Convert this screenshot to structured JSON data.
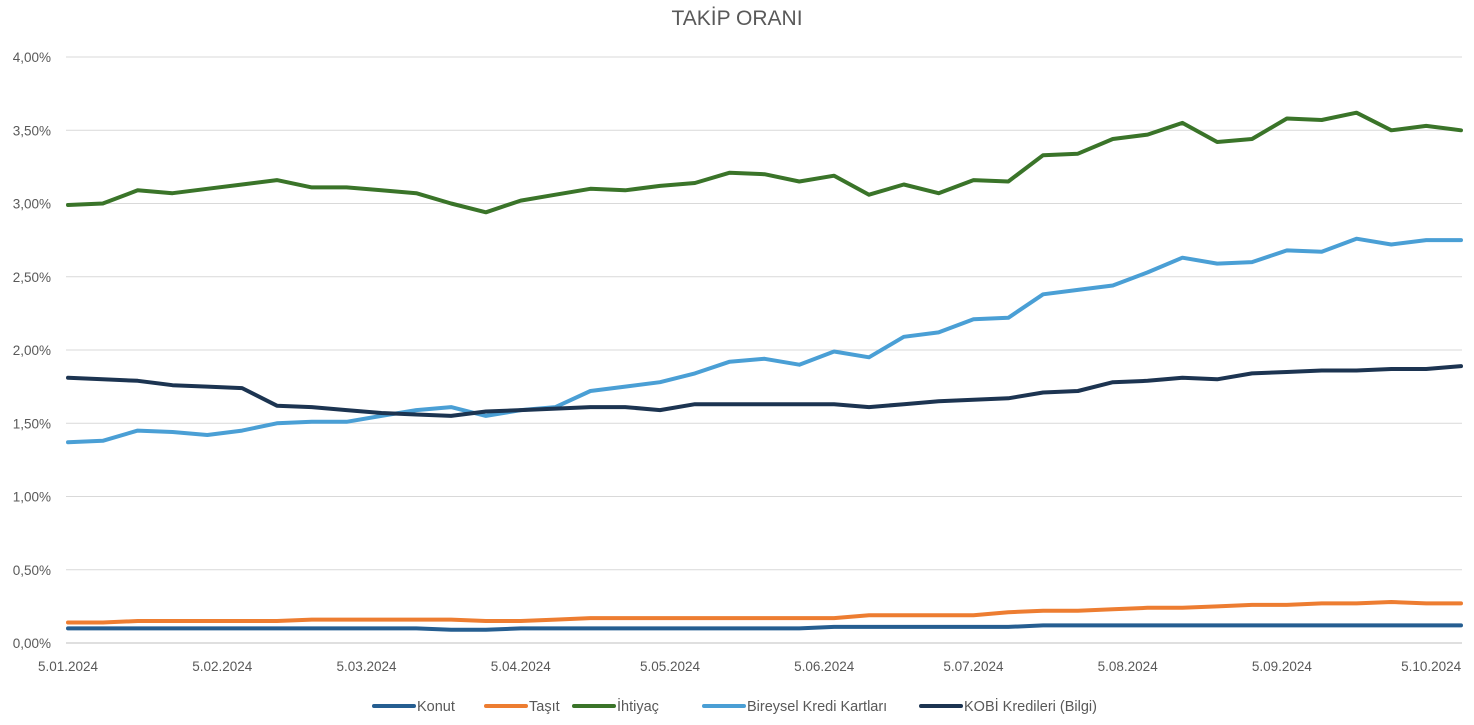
{
  "chart_data": {
    "type": "line",
    "title": "TAKİP ORANI",
    "xlabel": "",
    "ylabel": "",
    "x_tick_labels": [
      "5.01.2024",
      "5.02.2024",
      "5.03.2024",
      "5.04.2024",
      "5.05.2024",
      "5.06.2024",
      "5.07.2024",
      "5.08.2024",
      "5.09.2024",
      "5.10.2024"
    ],
    "y_tick_labels": [
      "0,00%",
      "0,50%",
      "1,00%",
      "1,50%",
      "2,00%",
      "2,50%",
      "3,00%",
      "3,50%",
      "4,00%"
    ],
    "ylim": [
      0,
      4.0
    ],
    "y_unit": "%",
    "grid": true,
    "legend_position": "bottom",
    "x": [
      "2024-01-05",
      "2024-01-12",
      "2024-01-19",
      "2024-01-26",
      "2024-02-02",
      "2024-02-09",
      "2024-02-16",
      "2024-02-23",
      "2024-03-01",
      "2024-03-08",
      "2024-03-15",
      "2024-03-22",
      "2024-03-29",
      "2024-04-05",
      "2024-04-12",
      "2024-04-19",
      "2024-04-26",
      "2024-05-03",
      "2024-05-10",
      "2024-05-17",
      "2024-05-24",
      "2024-05-31",
      "2024-06-07",
      "2024-06-14",
      "2024-06-21",
      "2024-06-28",
      "2024-07-05",
      "2024-07-12",
      "2024-07-19",
      "2024-07-26",
      "2024-08-02",
      "2024-08-09",
      "2024-08-16",
      "2024-08-23",
      "2024-08-30",
      "2024-09-06",
      "2024-09-13",
      "2024-09-20",
      "2024-09-27",
      "2024-10-04",
      "2024-10-11"
    ],
    "series": [
      {
        "name": "Konut",
        "color": "#255E91",
        "values": [
          0.1,
          0.1,
          0.1,
          0.1,
          0.1,
          0.1,
          0.1,
          0.1,
          0.1,
          0.1,
          0.1,
          0.09,
          0.09,
          0.1,
          0.1,
          0.1,
          0.1,
          0.1,
          0.1,
          0.1,
          0.1,
          0.1,
          0.11,
          0.11,
          0.11,
          0.11,
          0.11,
          0.11,
          0.12,
          0.12,
          0.12,
          0.12,
          0.12,
          0.12,
          0.12,
          0.12,
          0.12,
          0.12,
          0.12,
          0.12,
          0.12
        ]
      },
      {
        "name": "Taşıt",
        "color": "#ED7D31",
        "values": [
          0.14,
          0.14,
          0.15,
          0.15,
          0.15,
          0.15,
          0.15,
          0.16,
          0.16,
          0.16,
          0.16,
          0.16,
          0.15,
          0.15,
          0.16,
          0.17,
          0.17,
          0.17,
          0.17,
          0.17,
          0.17,
          0.17,
          0.17,
          0.19,
          0.19,
          0.19,
          0.19,
          0.21,
          0.22,
          0.22,
          0.23,
          0.24,
          0.24,
          0.25,
          0.26,
          0.26,
          0.27,
          0.27,
          0.28,
          0.27,
          0.27
        ]
      },
      {
        "name": "İhtiyaç",
        "color": "#3A7429",
        "values": [
          2.99,
          3.0,
          3.09,
          3.07,
          3.1,
          3.13,
          3.16,
          3.11,
          3.11,
          3.09,
          3.07,
          3.0,
          2.94,
          3.02,
          3.06,
          3.1,
          3.09,
          3.12,
          3.14,
          3.21,
          3.2,
          3.15,
          3.19,
          3.06,
          3.13,
          3.07,
          3.16,
          3.15,
          3.33,
          3.34,
          3.44,
          3.47,
          3.55,
          3.42,
          3.44,
          3.58,
          3.57,
          3.62,
          3.5,
          3.53,
          3.5
        ]
      },
      {
        "name": "Bireysel Kredi Kartları",
        "color": "#4A9FD5",
        "values": [
          1.37,
          1.38,
          1.45,
          1.44,
          1.42,
          1.45,
          1.5,
          1.51,
          1.51,
          1.55,
          1.59,
          1.61,
          1.55,
          1.59,
          1.61,
          1.72,
          1.75,
          1.78,
          1.84,
          1.92,
          1.94,
          1.9,
          1.99,
          1.95,
          2.09,
          2.12,
          2.21,
          2.22,
          2.38,
          2.41,
          2.44,
          2.53,
          2.63,
          2.59,
          2.6,
          2.68,
          2.67,
          2.76,
          2.72,
          2.75,
          2.75
        ]
      },
      {
        "name": "KOBİ Kredileri (Bilgi)",
        "color": "#1C3451",
        "values": [
          1.81,
          1.8,
          1.79,
          1.76,
          1.75,
          1.74,
          1.62,
          1.61,
          1.59,
          1.57,
          1.56,
          1.55,
          1.58,
          1.59,
          1.6,
          1.61,
          1.61,
          1.59,
          1.63,
          1.63,
          1.63,
          1.63,
          1.63,
          1.61,
          1.63,
          1.65,
          1.66,
          1.67,
          1.71,
          1.72,
          1.78,
          1.79,
          1.81,
          1.8,
          1.84,
          1.85,
          1.86,
          1.86,
          1.87,
          1.87,
          1.89
        ]
      }
    ]
  }
}
